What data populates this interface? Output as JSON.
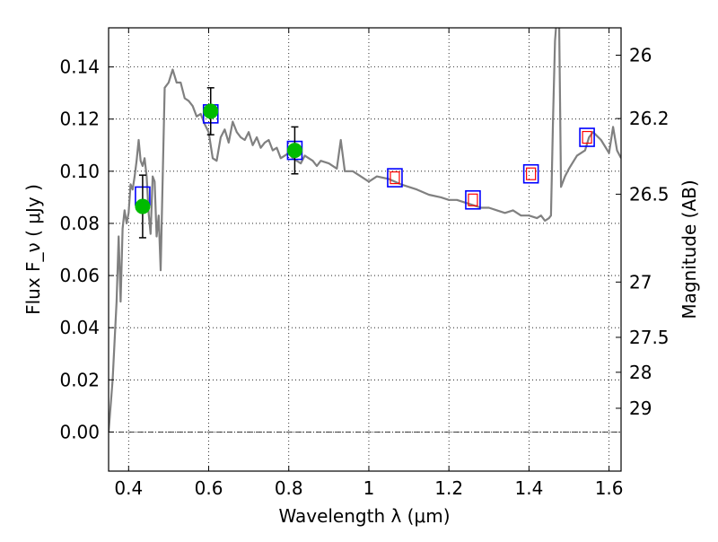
{
  "chart_data": {
    "type": "line",
    "xlabel": "Wavelength  λ (μm)",
    "ylabel": "Flux  F_ν  ( μJy )",
    "ylabel_right": "Magnitude (AB)",
    "xlim": [
      0.35,
      1.63
    ],
    "ylim": [
      -0.015,
      0.155
    ],
    "grid": true,
    "x_ticks": [
      0.4,
      0.6,
      0.8,
      1.0,
      1.2,
      1.4,
      1.6
    ],
    "x_tick_labels": [
      "0.4",
      "0.6",
      "0.8",
      "1",
      "1.2",
      "1.4",
      "1.6"
    ],
    "y_ticks": [
      0.0,
      0.02,
      0.04,
      0.06,
      0.08,
      0.1,
      0.12,
      0.14
    ],
    "y_tick_labels": [
      "0.00",
      "0.02",
      "0.04",
      "0.06",
      "0.08",
      "0.10",
      "0.12",
      "0.14"
    ],
    "right_ticks": [
      {
        "label": "26",
        "flux": 0.1445
      },
      {
        "label": "26.2",
        "flux": 0.1202
      },
      {
        "label": "26.5",
        "flux": 0.0912
      },
      {
        "label": "27",
        "flux": 0.0575
      },
      {
        "label": "27.5",
        "flux": 0.0363
      },
      {
        "label": "28",
        "flux": 0.0229
      },
      {
        "label": "29",
        "flux": 0.0091
      }
    ],
    "series": [
      {
        "kind": "model-spectrum",
        "color": "#808080",
        "x": [
          0.35,
          0.36,
          0.37,
          0.375,
          0.38,
          0.385,
          0.39,
          0.395,
          0.4,
          0.405,
          0.41,
          0.415,
          0.42,
          0.425,
          0.43,
          0.435,
          0.44,
          0.445,
          0.45,
          0.455,
          0.46,
          0.465,
          0.47,
          0.475,
          0.48,
          0.49,
          0.5,
          0.51,
          0.52,
          0.53,
          0.54,
          0.55,
          0.56,
          0.57,
          0.58,
          0.59,
          0.6,
          0.61,
          0.62,
          0.63,
          0.64,
          0.65,
          0.66,
          0.67,
          0.68,
          0.69,
          0.7,
          0.71,
          0.72,
          0.73,
          0.74,
          0.75,
          0.76,
          0.77,
          0.78,
          0.79,
          0.8,
          0.81,
          0.82,
          0.83,
          0.84,
          0.85,
          0.86,
          0.87,
          0.88,
          0.9,
          0.92,
          0.93,
          0.94,
          0.96,
          0.98,
          1.0,
          1.02,
          1.05,
          1.08,
          1.1,
          1.12,
          1.15,
          1.18,
          1.2,
          1.22,
          1.24,
          1.26,
          1.28,
          1.3,
          1.32,
          1.34,
          1.36,
          1.38,
          1.4,
          1.42,
          1.43,
          1.44,
          1.45,
          1.455,
          1.46,
          1.465,
          1.47,
          1.475,
          1.48,
          1.49,
          1.5,
          1.52,
          1.54,
          1.55,
          1.56,
          1.58,
          1.6,
          1.61,
          1.62,
          1.63
        ],
        "y": [
          0.0,
          0.02,
          0.05,
          0.075,
          0.05,
          0.078,
          0.085,
          0.08,
          0.084,
          0.095,
          0.093,
          0.098,
          0.104,
          0.112,
          0.104,
          0.102,
          0.105,
          0.098,
          0.084,
          0.076,
          0.098,
          0.096,
          0.075,
          0.083,
          0.062,
          0.132,
          0.134,
          0.139,
          0.134,
          0.134,
          0.128,
          0.127,
          0.125,
          0.121,
          0.122,
          0.118,
          0.115,
          0.105,
          0.104,
          0.113,
          0.116,
          0.111,
          0.119,
          0.115,
          0.113,
          0.112,
          0.115,
          0.11,
          0.113,
          0.109,
          0.111,
          0.112,
          0.108,
          0.109,
          0.105,
          0.106,
          0.107,
          0.105,
          0.104,
          0.103,
          0.106,
          0.105,
          0.104,
          0.102,
          0.104,
          0.103,
          0.101,
          0.112,
          0.1,
          0.1,
          0.098,
          0.096,
          0.098,
          0.097,
          0.095,
          0.094,
          0.093,
          0.091,
          0.09,
          0.089,
          0.089,
          0.088,
          0.087,
          0.086,
          0.086,
          0.085,
          0.084,
          0.085,
          0.083,
          0.083,
          0.082,
          0.083,
          0.081,
          0.082,
          0.083,
          0.12,
          0.15,
          0.16,
          0.16,
          0.094,
          0.098,
          0.101,
          0.106,
          0.108,
          0.113,
          0.115,
          0.112,
          0.107,
          0.117,
          0.108,
          0.105
        ]
      },
      {
        "kind": "model-photometry",
        "marker": "open-square",
        "color": "#0000ff",
        "x": [
          0.435,
          0.605,
          0.815,
          1.065,
          1.26,
          1.405,
          1.545
        ],
        "y": [
          0.0905,
          0.122,
          0.108,
          0.0975,
          0.089,
          0.099,
          0.113
        ]
      },
      {
        "kind": "model-photometry-inner",
        "marker": "open-square",
        "color": "#ff0000",
        "x": [
          1.065,
          1.26,
          1.405,
          1.545
        ],
        "y": [
          0.0975,
          0.089,
          0.099,
          0.113
        ]
      },
      {
        "kind": "observed-photometry",
        "marker": "filled-circle",
        "color": "#00bb00",
        "x": [
          0.435,
          0.605,
          0.815
        ],
        "y": [
          0.0865,
          0.123,
          0.108
        ],
        "yerr": [
          0.012,
          0.009,
          0.009
        ]
      }
    ]
  }
}
